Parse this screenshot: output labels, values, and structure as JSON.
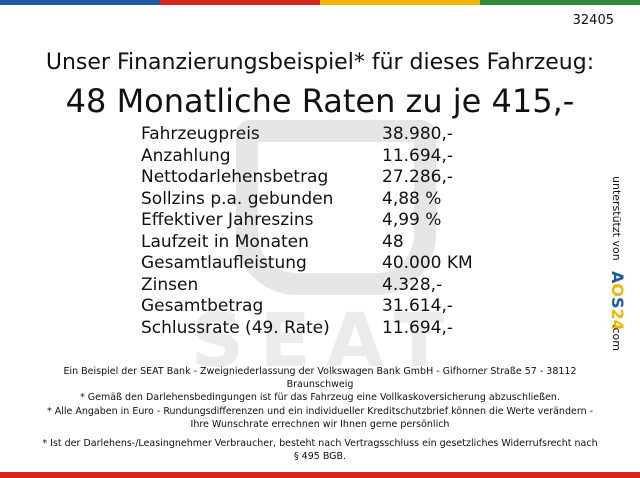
{
  "reference_number": "32405",
  "heading": "Unser Finanzierungsbeispiel* für dieses Fahrzeug:",
  "subheading": "48 Monatliche Raten zu je 415,-",
  "watermark_brand": "SEAT",
  "rows": [
    {
      "label": "Fahrzeugpreis",
      "value": "38.980,-"
    },
    {
      "label": "Anzahlung",
      "value": "11.694,-"
    },
    {
      "label": "Nettodarlehensbetrag",
      "value": "27.286,-"
    },
    {
      "label": "Sollzins p.a. gebunden",
      "value": "4,88 %"
    },
    {
      "label": "Effektiver Jahreszins",
      "value": "4,99 %"
    },
    {
      "label": "Laufzeit in Monaten",
      "value": "48"
    },
    {
      "label": "Gesamtlaufleistung",
      "value": "40.000 KM"
    },
    {
      "label": "Zinsen",
      "value": "4.328,-"
    },
    {
      "label": "Gesamtbetrag",
      "value": "31.614,-"
    },
    {
      "label": "Schlussrate (49. Rate)",
      "value": "11.694,-"
    }
  ],
  "sidebar": {
    "supported_by": "unterstützt von",
    "logo_text": "AOS24",
    "logo_suffix": ".com"
  },
  "footnotes": [
    "Ein Beispiel der SEAT Bank - Zweigniederlassung der Volkswagen Bank GmbH - Gifhorner Straße 57 - 38112 Braunschweig",
    "* Gemäß den Darlehensbedingungen ist für das Fahrzeug eine Vollkaskoversicherung abzuschließen.",
    "* Alle Angaben in Euro - Rundungsdifferenzen und ein individueller Kreditschutzbrief können die Werte verändern - Ihre Wunschrate errechnen wir Ihnen gerne persönlich",
    "* Ist der Darlehens-/Leasingnehmer Verbraucher, besteht nach Vertragsschluss ein gesetzliches Widerrufsrecht nach § 495 BGB."
  ],
  "colors": {
    "bar_blue": "#1f5aa6",
    "bar_red": "#d9241b",
    "bar_yellow": "#f2b600",
    "bar_green": "#2e8b3a",
    "logo_a": "#1f5aa6",
    "logo_o": "#f2b600",
    "logo_s": "#1f5aa6",
    "logo_digits": "#f2b600"
  }
}
